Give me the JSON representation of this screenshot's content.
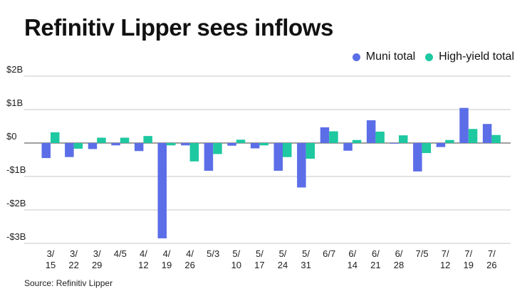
{
  "title": "Refinitiv Lipper sees inflows",
  "source": "Source: Refinitiv Lipper",
  "colors": {
    "muni": "#5b6ee8",
    "high_yield": "#1ec8a0",
    "grid": "#b5b5b5",
    "zero_line": "#666666"
  },
  "legend": [
    {
      "label": "Muni total",
      "color_key": "muni"
    },
    {
      "label": "High-yield total",
      "color_key": "high_yield"
    }
  ],
  "chart_data": {
    "type": "bar",
    "title": "Refinitiv Lipper sees inflows",
    "xlabel": "",
    "ylabel": "",
    "ylim": [
      -3,
      2
    ],
    "y_ticks": [
      {
        "value": 2,
        "label": "$2B"
      },
      {
        "value": 1,
        "label": "$1B"
      },
      {
        "value": 0,
        "label": "$0"
      },
      {
        "value": -1,
        "label": "-$1B"
      },
      {
        "value": -2,
        "label": "-$2B"
      },
      {
        "value": -3,
        "label": "-$3B"
      }
    ],
    "grid": "horizontal",
    "legend_position": "top-right",
    "categories": [
      [
        "3/",
        "15"
      ],
      [
        "3/",
        "22"
      ],
      [
        "3/",
        "29"
      ],
      [
        "4/5"
      ],
      [
        "4/",
        "12"
      ],
      [
        "4/",
        "19"
      ],
      [
        "4/",
        "26"
      ],
      [
        "5/3"
      ],
      [
        "5/",
        "10"
      ],
      [
        "5/",
        "17"
      ],
      [
        "5/",
        "24"
      ],
      [
        "5/",
        "31"
      ],
      [
        "6/7"
      ],
      [
        "6/",
        "14"
      ],
      [
        "6/",
        "21"
      ],
      [
        "6/",
        "28"
      ],
      [
        "7/5"
      ],
      [
        "7/",
        "12"
      ],
      [
        "7/",
        "19"
      ],
      [
        "7/",
        "26"
      ]
    ],
    "series": [
      {
        "name": "Muni total",
        "color_key": "muni",
        "values": [
          -0.45,
          -0.42,
          -0.18,
          -0.07,
          -0.24,
          -2.85,
          -0.07,
          -0.83,
          -0.08,
          -0.16,
          -0.83,
          -1.33,
          0.47,
          -0.23,
          0.68,
          -0.02,
          -0.85,
          -0.12,
          1.05,
          0.57
        ]
      },
      {
        "name": "High-yield total",
        "color_key": "high_yield",
        "values": [
          0.32,
          -0.17,
          0.16,
          0.16,
          0.21,
          -0.07,
          -0.55,
          -0.33,
          0.1,
          -0.07,
          -0.42,
          -0.47,
          0.35,
          0.09,
          0.34,
          0.23,
          -0.3,
          0.09,
          0.42,
          0.24
        ]
      }
    ]
  }
}
